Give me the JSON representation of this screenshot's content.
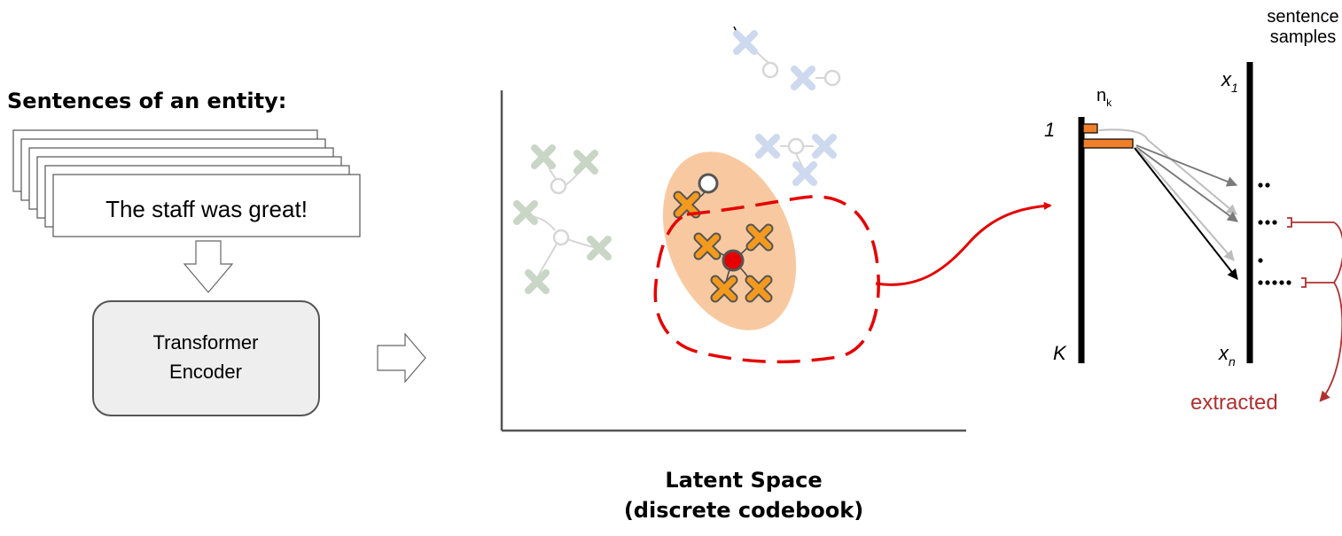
{
  "left": {
    "heading": "Sentences of an entity:",
    "sentence": "The staff was great!",
    "encoder": [
      "Transformer",
      "Encoder"
    ]
  },
  "latent": {
    "caption": [
      "Latent Space",
      "(discrete codebook)"
    ]
  },
  "histogram": {
    "top_index": "1",
    "bottom_index": "K",
    "count_label": "n",
    "count_subscript": "k"
  },
  "samples": {
    "header": [
      "sentence",
      "samples"
    ],
    "first": "x",
    "first_sub": "1",
    "last": "x",
    "last_sub": "n",
    "extracted": "extracted"
  },
  "colors": {
    "orange": "#f39a1e",
    "orange_bar": "#ef7f2a",
    "cluster_fill": "#f8c9a0",
    "red": "#e60000",
    "dark_red": "#b03030",
    "green_faded": "#c9d6c6",
    "blue_faded": "#cdd9ee"
  }
}
